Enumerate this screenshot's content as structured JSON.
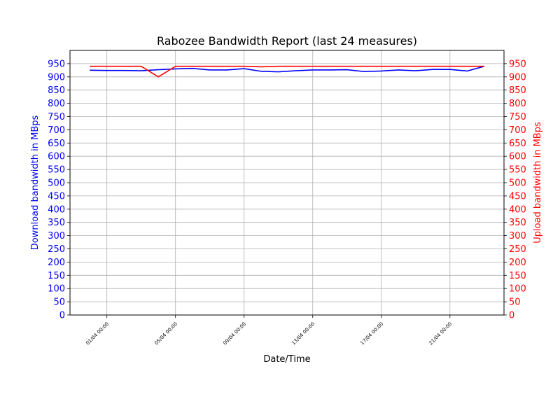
{
  "chart_data": {
    "type": "line",
    "title": "Rabozee Bandwidth Report (last 24 measures)",
    "xlabel": "Date/Time",
    "ylabel_left": "Download bandwidth in MBps",
    "ylabel_right": "Upload bandwidth in MBps",
    "ylim": [
      0,
      1000
    ],
    "y_ticks": [
      0,
      50,
      100,
      150,
      200,
      250,
      300,
      350,
      400,
      450,
      500,
      550,
      600,
      650,
      700,
      750,
      800,
      850,
      900,
      950
    ],
    "x_tick_labels": [
      "01/04 00:00",
      "05/04 00:00",
      "09/04 00:00",
      "13/04 00:00",
      "17/04 00:00",
      "21/04 00:00"
    ],
    "x": [
      "2023-03-31 00:00",
      "2023-04-01 00:00",
      "2023-04-02 00:00",
      "2023-04-03 00:00",
      "2023-04-04 00:00",
      "2023-04-05 00:00",
      "2023-04-06 00:00",
      "2023-04-07 00:00",
      "2023-04-08 00:00",
      "2023-04-09 00:00",
      "2023-04-10 00:00",
      "2023-04-11 00:00",
      "2023-04-12 00:00",
      "2023-04-13 00:00",
      "2023-04-14 00:00",
      "2023-04-15 00:00",
      "2023-04-16 00:00",
      "2023-04-17 00:00",
      "2023-04-18 00:00",
      "2023-04-19 00:00",
      "2023-04-20 00:00",
      "2023-04-21 00:00",
      "2023-04-22 00:00",
      "2023-04-23 00:00"
    ],
    "series": [
      {
        "axis": "left",
        "color": "#0000ff",
        "values": [
          925,
          924,
          924,
          923,
          927,
          930,
          932,
          926,
          926,
          931,
          921,
          919,
          923,
          926,
          926,
          927,
          920,
          922,
          926,
          923,
          928,
          928,
          922,
          940
        ]
      },
      {
        "axis": "right",
        "color": "#ff0000",
        "values": [
          940,
          940,
          940,
          940,
          900,
          940,
          940,
          940,
          940,
          940,
          938,
          940,
          940,
          940,
          940,
          940,
          940,
          940,
          940,
          940,
          940,
          940,
          940,
          940
        ]
      }
    ],
    "grid": true,
    "left_axis_color": "#0000ff",
    "right_axis_color": "#ff0000"
  }
}
